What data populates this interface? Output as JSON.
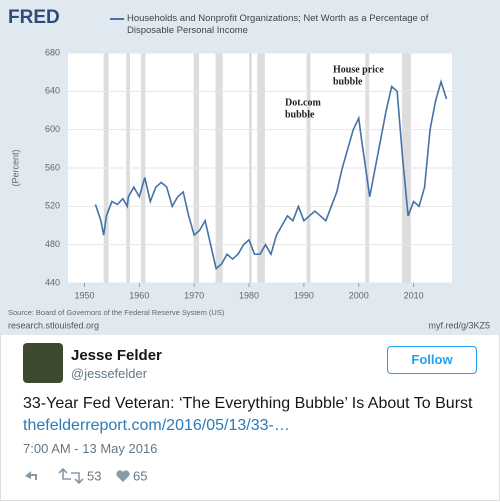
{
  "chart_data": {
    "type": "line",
    "logo": "FRED",
    "y_label": "(Percent)",
    "x": [
      1952,
      1953,
      1953.5,
      1954,
      1955,
      1956,
      1957,
      1957.8,
      1958,
      1959,
      1960,
      1961,
      1962,
      1963,
      1964,
      1965,
      1966,
      1967,
      1968,
      1969,
      1970,
      1971,
      1972,
      1973,
      1974,
      1975,
      1976,
      1977,
      1978,
      1979,
      1980,
      1981,
      1982,
      1983,
      1984,
      1985,
      1986,
      1987,
      1988,
      1989,
      1990,
      1991,
      1992,
      1993,
      1994,
      1995,
      1996,
      1997,
      1998,
      1999,
      2000,
      2000.5,
      2001,
      2002,
      2003,
      2004,
      2005,
      2006,
      2007,
      2008,
      2009,
      2010,
      2011,
      2012,
      2013,
      2014,
      2015,
      2016
    ],
    "series": [
      {
        "name": "Households and Nonprofit Organizations; Net Worth as a Percentage of Disposable Personal Income",
        "color": "#4572a7",
        "values": [
          522,
          505,
          490,
          510,
          525,
          522,
          528,
          520,
          530,
          540,
          530,
          550,
          525,
          540,
          545,
          540,
          520,
          530,
          535,
          510,
          490,
          495,
          505,
          480,
          455,
          460,
          470,
          465,
          470,
          480,
          485,
          470,
          470,
          480,
          470,
          490,
          500,
          510,
          505,
          520,
          505,
          510,
          515,
          510,
          505,
          520,
          535,
          560,
          580,
          600,
          612,
          590,
          570,
          530,
          560,
          590,
          620,
          645,
          640,
          570,
          510,
          525,
          520,
          540,
          600,
          630,
          650,
          632
        ]
      }
    ],
    "recessions": [
      [
        1953.5,
        1954.4
      ],
      [
        1957.6,
        1958.3
      ],
      [
        1960.3,
        1961.1
      ],
      [
        1969.9,
        1970.9
      ],
      [
        1973.9,
        1975.2
      ],
      [
        1980,
        1980.5
      ],
      [
        1981.5,
        1982.9
      ],
      [
        1990.5,
        1991.2
      ],
      [
        2001.2,
        2001.9
      ],
      [
        2007.9,
        2009.5
      ]
    ],
    "xlim": [
      1947,
      2017
    ],
    "ylim": [
      440,
      680
    ],
    "xticks": [
      1950,
      1960,
      1970,
      1980,
      1990,
      2000,
      2010
    ],
    "yticks": [
      440,
      480,
      520,
      560,
      600,
      640,
      680
    ],
    "grid": true,
    "annotations": [
      {
        "lines": [
          "Dot.com",
          "bubble"
        ]
      },
      {
        "lines": [
          "House price",
          "bubble"
        ]
      }
    ],
    "source": "Source: Board of Governors of the Federal Reserve System (US)",
    "site": "research.stlouisfed.org",
    "short_url": "myf.red/g/3KZ5"
  },
  "tweet": {
    "name": "Jesse Felder",
    "handle": "@jessefelder",
    "follow": "Follow",
    "text": "33-Year Fed Veteran: ‘The Everything Bubble’ Is About To Burst",
    "link": "thefelderreport.com/2016/05/13/33-…",
    "time": "7:00 AM - 13 May 2016",
    "retweets": "53",
    "likes": "65"
  }
}
